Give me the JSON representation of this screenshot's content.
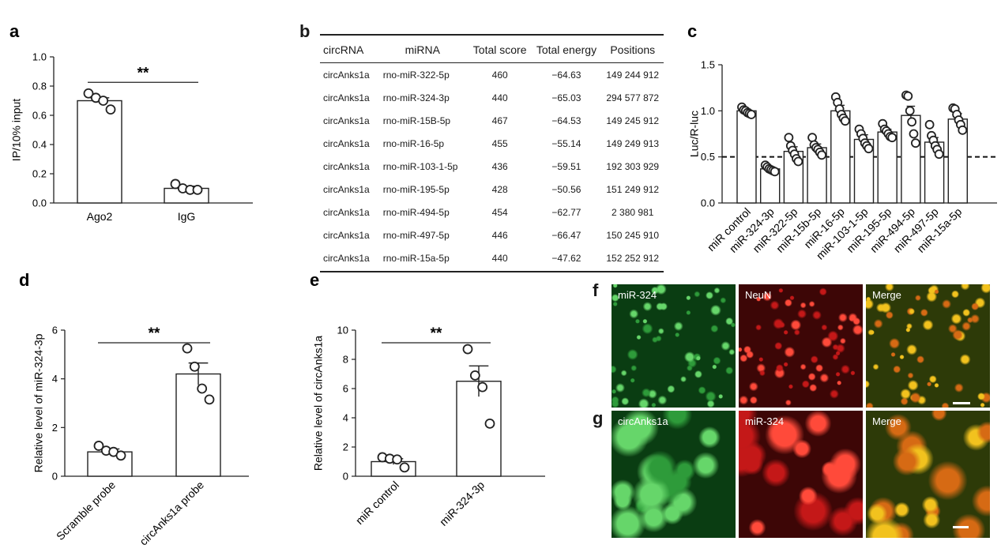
{
  "chart_data": [
    {
      "panel": "a",
      "type": "bar",
      "categories": [
        "Ago2",
        "IgG"
      ],
      "values": [
        0.7,
        0.1
      ],
      "errors": [
        0.02,
        0.015
      ],
      "points": [
        [
          0.75,
          0.72,
          0.7,
          0.64
        ],
        [
          0.13,
          0.1,
          0.09,
          0.09
        ]
      ],
      "ylabel": "IP/10% input",
      "ylim": [
        0,
        1.0
      ],
      "yticks": [
        "0.0",
        "0.2",
        "0.4",
        "0.6",
        "0.8",
        "1.0"
      ],
      "significance": "**"
    },
    {
      "panel": "b",
      "type": "table",
      "columns": [
        "circRNA",
        "miRNA",
        "Total score",
        "Total energy",
        "Positions"
      ],
      "rows": [
        [
          "circAnks1a",
          "rno-miR-322-5p",
          "460",
          "−64.63",
          "149 244 912"
        ],
        [
          "circAnks1a",
          "rno-miR-324-3p",
          "440",
          "−65.03",
          "294 577 872"
        ],
        [
          "circAnks1a",
          "rno-miR-15B-5p",
          "467",
          "−64.53",
          "149 245 912"
        ],
        [
          "circAnks1a",
          "rno-miR-16-5p",
          "455",
          "−55.14",
          "149 249 913"
        ],
        [
          "circAnks1a",
          "rno-miR-103-1-5p",
          "436",
          "−59.51",
          "192 303 929"
        ],
        [
          "circAnks1a",
          "rno-miR-195-5p",
          "428",
          "−50.56",
          "151 249 912"
        ],
        [
          "circAnks1a",
          "rno-miR-494-5p",
          "454",
          "−62.77",
          "2   380 981"
        ],
        [
          "circAnks1a",
          "rno-miR-497-5p",
          "446",
          "−66.47",
          "150 245 910"
        ],
        [
          "circAnks1a",
          "rno-miR-15a-5p",
          "440",
          "−47.62",
          "152 252 912"
        ]
      ]
    },
    {
      "panel": "c",
      "type": "bar",
      "categories": [
        "miR control",
        "miR-324-3p",
        "miR-322-5p",
        "miR-15b-5p",
        "miR-16-5p",
        "miR-103-1-5p",
        "miR-195-5p",
        "miR-494-5p",
        "miR-497-5p",
        "miR-15a-5p"
      ],
      "values": [
        1.0,
        0.37,
        0.56,
        0.6,
        1.0,
        0.69,
        0.77,
        0.95,
        0.66,
        0.91
      ],
      "errors": [
        0.02,
        0.02,
        0.05,
        0.04,
        0.06,
        0.05,
        0.03,
        0.1,
        0.05,
        0.06
      ],
      "points": [
        [
          1.04,
          1.01,
          1.0,
          0.98,
          0.97,
          0.96
        ],
        [
          0.41,
          0.39,
          0.37,
          0.36,
          0.35,
          0.34
        ],
        [
          0.71,
          0.62,
          0.57,
          0.53,
          0.48,
          0.45
        ],
        [
          0.71,
          0.63,
          0.6,
          0.58,
          0.55,
          0.52
        ],
        [
          1.15,
          1.09,
          1.02,
          0.96,
          0.92,
          0.89
        ],
        [
          0.8,
          0.75,
          0.7,
          0.65,
          0.62,
          0.59
        ],
        [
          0.86,
          0.8,
          0.78,
          0.75,
          0.72,
          0.71
        ],
        [
          1.17,
          1.16,
          1.0,
          0.88,
          0.75,
          0.65
        ],
        [
          0.85,
          0.73,
          0.68,
          0.62,
          0.58,
          0.53
        ],
        [
          1.03,
          1.02,
          0.96,
          0.9,
          0.85,
          0.79
        ]
      ],
      "ylabel": "Luc/R-luc",
      "ylim": [
        0,
        1.5
      ],
      "yticks": [
        "0.0",
        "0.5",
        "1.0",
        "1.5"
      ],
      "reference_line": 0.5
    },
    {
      "panel": "d",
      "type": "bar",
      "categories": [
        "Scramble probe",
        "circAnks1a probe"
      ],
      "values": [
        1.0,
        4.2
      ],
      "errors": [
        0.12,
        0.45
      ],
      "points": [
        [
          1.25,
          1.05,
          1.0,
          0.85
        ],
        [
          5.25,
          4.5,
          3.6,
          3.15
        ]
      ],
      "ylabel": "Relative level of miR-324-3p",
      "ylim": [
        0,
        6
      ],
      "yticks": [
        "0",
        "2",
        "4",
        "6"
      ],
      "significance": "**"
    },
    {
      "panel": "e",
      "type": "bar",
      "categories": [
        "miR control",
        "miR-324-3p"
      ],
      "values": [
        1.0,
        6.5
      ],
      "errors": [
        0.2,
        1.05
      ],
      "points": [
        [
          1.3,
          1.2,
          1.15,
          0.6
        ],
        [
          8.7,
          6.9,
          6.1,
          3.6
        ]
      ],
      "ylabel": "Relative level of circAnks1a",
      "ylim": [
        0,
        10
      ],
      "yticks": [
        "0",
        "2",
        "4",
        "6",
        "8",
        "10"
      ],
      "significance": "**"
    }
  ],
  "micrographs": {
    "f": {
      "label": "f",
      "panels": [
        "miR-324",
        "NeuN",
        "Merge"
      ]
    },
    "g": {
      "label": "g",
      "panels": [
        "circAnks1a",
        "miR-324",
        "Merge"
      ]
    }
  }
}
